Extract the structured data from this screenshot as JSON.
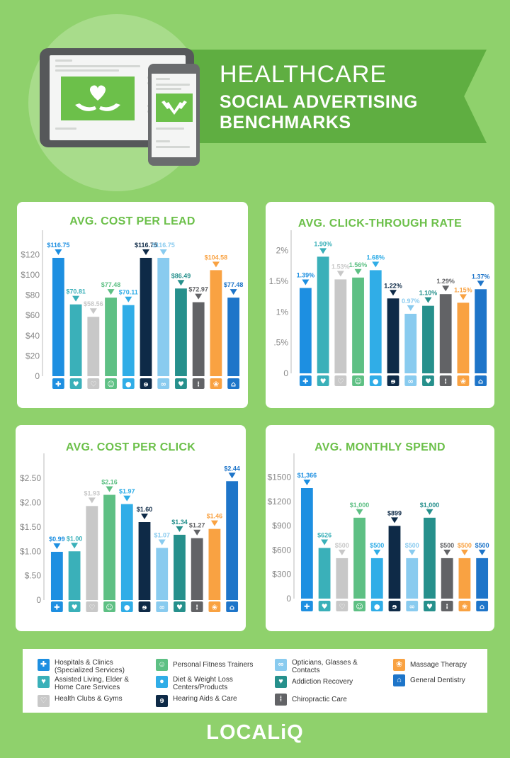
{
  "header": {
    "title": "HEALTHCARE",
    "subtitle_line1": "SOCIAL ADVERTISING",
    "subtitle_line2": "BENCHMARKS"
  },
  "categories": [
    {
      "name": "Hospitals & Clinics (Specialized Services)",
      "color": "#1d8fe1",
      "icon": "plus-icon"
    },
    {
      "name": "Assisted Living, Elder & Home Care Services",
      "color": "#3ab0b9",
      "icon": "care-icon"
    },
    {
      "name": "Health Clubs & Gyms",
      "color": "#c8c8c8",
      "icon": "heart-outline-icon"
    },
    {
      "name": "Personal Fitness Trainers",
      "color": "#5ec084",
      "icon": "trainer-icon"
    },
    {
      "name": "Diet & Weight Loss Centers/Products",
      "color": "#30ade7",
      "icon": "apple-icon"
    },
    {
      "name": "Hearing Aids & Care",
      "color": "#0e2a47",
      "icon": "ear-icon"
    },
    {
      "name": "Opticians, Glasses & Contacts",
      "color": "#89cbef",
      "icon": "glasses-icon"
    },
    {
      "name": "Addiction Recovery",
      "color": "#26908c",
      "icon": "recovery-icon"
    },
    {
      "name": "Chiropractic Care",
      "color": "#626366",
      "icon": "spine-icon"
    },
    {
      "name": "Massage Therapy",
      "color": "#f9a242",
      "icon": "lotus-icon"
    },
    {
      "name": "General Dentistry",
      "color": "#1e75c9",
      "icon": "tooth-icon"
    }
  ],
  "chart_data": [
    {
      "type": "bar",
      "title": "AVG. COST PER LEAD",
      "values": [
        116.75,
        70.81,
        58.56,
        77.48,
        70.11,
        116.75,
        116.75,
        86.49,
        72.97,
        104.58,
        77.48
      ],
      "labels": [
        "$116.75",
        "$70.81",
        "$58.56",
        "$77.48",
        "$70.11",
        "$116.75",
        "$116.75",
        "$86.49",
        "$72.97",
        "$104.58",
        "$77.48"
      ],
      "yticks": [
        0,
        20,
        40,
        60,
        80,
        100,
        120
      ],
      "ytick_labels": [
        "0",
        "$20",
        "$40",
        "$60",
        "$80",
        "$100",
        "$120"
      ],
      "ylim": [
        0,
        130
      ]
    },
    {
      "type": "bar",
      "title": "AVG. CLICK-THROUGH RATE",
      "values": [
        1.39,
        1.9,
        1.53,
        1.56,
        1.68,
        1.22,
        0.97,
        1.1,
        1.29,
        1.15,
        1.37
      ],
      "labels": [
        "1.39%",
        "1.90%",
        "1.53%",
        "1.56%",
        "1.68%",
        "1.22%",
        "0.97%",
        "1.10%",
        "1.29%",
        "1.15%",
        "1.37%"
      ],
      "yticks": [
        0,
        0.5,
        1,
        1.5,
        2
      ],
      "ytick_labels": [
        "0",
        ".5%",
        "1%",
        "1.5%",
        "2%"
      ],
      "ylim": [
        0,
        2.1
      ]
    },
    {
      "type": "bar",
      "title": "AVG. COST PER CLICK",
      "values": [
        0.99,
        1.0,
        1.93,
        2.16,
        1.97,
        1.6,
        1.07,
        1.34,
        1.27,
        1.46,
        2.44
      ],
      "labels": [
        "$0.99",
        "$1.00",
        "$1.93",
        "$2.16",
        "$1.97",
        "$1.60",
        "$1.07",
        "$1.34",
        "$1.27",
        "$1.46",
        "$2.44"
      ],
      "yticks": [
        0,
        0.5,
        1.0,
        1.5,
        2.0,
        2.5
      ],
      "ytick_labels": [
        "0",
        "$.50",
        "$1.00",
        "$1.50",
        "$2.00",
        "$2.50"
      ],
      "ylim": [
        0,
        2.72
      ]
    },
    {
      "type": "bar",
      "title": "AVG. MONTHLY SPEND",
      "values": [
        1366,
        626,
        500,
        1000,
        500,
        899,
        500,
        1000,
        500,
        500,
        500
      ],
      "labels": [
        "$1,366",
        "$626",
        "$500",
        "$1,000",
        "$500",
        "$899",
        "$500",
        "$1,000",
        "$500",
        "$500",
        "$500"
      ],
      "yticks": [
        0,
        300,
        600,
        900,
        1200,
        1500
      ],
      "ytick_labels": [
        "0",
        "$300",
        "$600",
        "$900",
        "$1200",
        "$1500"
      ],
      "ylim": [
        0,
        1620
      ]
    }
  ],
  "footer": {
    "logo": "LOCALiQ"
  }
}
